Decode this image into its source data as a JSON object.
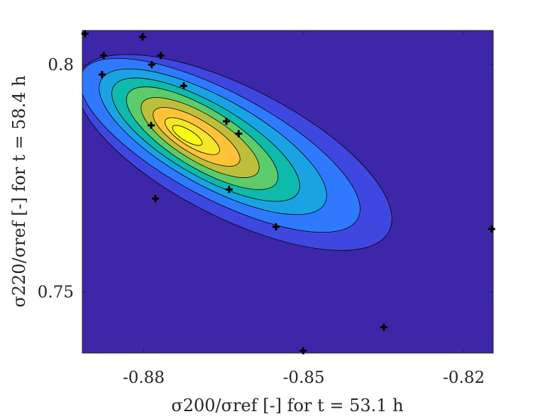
{
  "chart_data": {
    "type": "contour",
    "title": "",
    "xlabel": "σ200/σref [-] for t = 53.1 h",
    "ylabel": "σ220/σref [-] for t = 58.4 h",
    "xlim": [
      -0.8915,
      -0.8145
    ],
    "ylim": [
      0.7365,
      0.8075
    ],
    "x_ticks": [
      -0.88,
      -0.85,
      -0.82
    ],
    "x_tick_labels": [
      "-0.88",
      "-0.85",
      "-0.82"
    ],
    "y_ticks": [
      0.75,
      0.8
    ],
    "y_tick_labels": [
      "0.75",
      "0.8"
    ],
    "grid": false,
    "colormap": "parula",
    "density_peak": {
      "x": -0.8735,
      "y": 0.7835
    },
    "contour_levels": 9,
    "level_colors": [
      "#3E26A8",
      "#3E48E0",
      "#2F79FF",
      "#1AA3E3",
      "#0DBAAB",
      "#5CCB6B",
      "#BDBF3B",
      "#FFC33A",
      "#F5E527",
      "#F9FB15"
    ],
    "samples": [
      {
        "x": -0.891,
        "y": 0.8068
      },
      {
        "x": -0.8802,
        "y": 0.8061
      },
      {
        "x": -0.8875,
        "y": 0.802
      },
      {
        "x": -0.8768,
        "y": 0.802
      },
      {
        "x": -0.8785,
        "y": 0.8
      },
      {
        "x": -0.8878,
        "y": 0.7978
      },
      {
        "x": -0.8725,
        "y": 0.7953
      },
      {
        "x": -0.8645,
        "y": 0.7875
      },
      {
        "x": -0.8786,
        "y": 0.7866
      },
      {
        "x": -0.8622,
        "y": 0.7848
      },
      {
        "x": -0.864,
        "y": 0.7725
      },
      {
        "x": -0.8778,
        "y": 0.7705
      },
      {
        "x": -0.8552,
        "y": 0.7643
      },
      {
        "x": -0.8148,
        "y": 0.7638
      },
      {
        "x": -0.835,
        "y": 0.7422
      },
      {
        "x": -0.8501,
        "y": 0.737
      }
    ]
  }
}
